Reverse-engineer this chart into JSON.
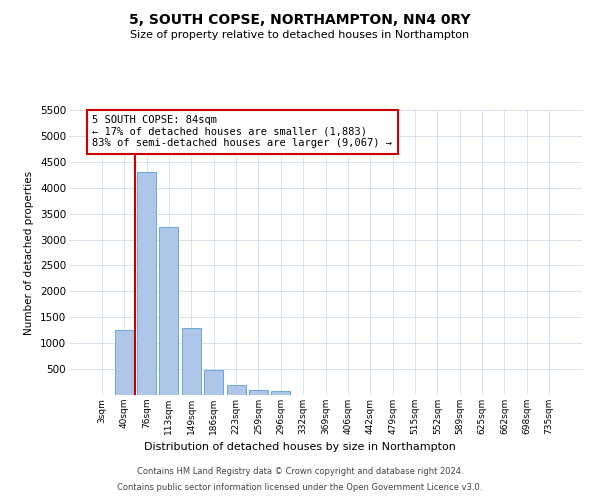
{
  "title": "5, SOUTH COPSE, NORTHAMPTON, NN4 0RY",
  "subtitle": "Size of property relative to detached houses in Northampton",
  "xlabel": "Distribution of detached houses by size in Northampton",
  "ylabel": "Number of detached properties",
  "categories": [
    "3sqm",
    "40sqm",
    "76sqm",
    "113sqm",
    "149sqm",
    "186sqm",
    "223sqm",
    "259sqm",
    "296sqm",
    "332sqm",
    "369sqm",
    "406sqm",
    "442sqm",
    "479sqm",
    "515sqm",
    "552sqm",
    "589sqm",
    "625sqm",
    "662sqm",
    "698sqm",
    "735sqm"
  ],
  "values": [
    0,
    1250,
    4300,
    3250,
    1300,
    480,
    200,
    100,
    70,
    0,
    0,
    0,
    0,
    0,
    0,
    0,
    0,
    0,
    0,
    0,
    0
  ],
  "bar_color": "#aec6e8",
  "bar_edgecolor": "#5a9fd4",
  "property_line_index": 2,
  "property_line_color": "#cc0000",
  "annotation_text": "5 SOUTH COPSE: 84sqm\n← 17% of detached houses are smaller (1,883)\n83% of semi-detached houses are larger (9,067) →",
  "annotation_box_facecolor": "#ffffff",
  "annotation_box_edgecolor": "#cc0000",
  "ylim": [
    0,
    5500
  ],
  "yticks": [
    500,
    1000,
    1500,
    2000,
    2500,
    3000,
    3500,
    4000,
    4500,
    5000,
    5500
  ],
  "footer_line1": "Contains HM Land Registry data © Crown copyright and database right 2024.",
  "footer_line2": "Contains public sector information licensed under the Open Government Licence v3.0.",
  "background_color": "#ffffff",
  "grid_color": "#c8d8e8",
  "fig_width": 6.0,
  "fig_height": 5.0,
  "fig_dpi": 100
}
